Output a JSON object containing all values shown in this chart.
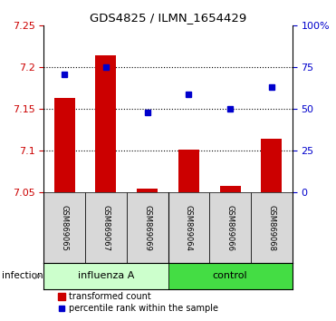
{
  "title": "GDS4825 / ILMN_1654429",
  "samples": [
    "GSM869065",
    "GSM869067",
    "GSM869069",
    "GSM869064",
    "GSM869066",
    "GSM869068"
  ],
  "bar_values": [
    7.163,
    7.215,
    7.055,
    7.102,
    7.058,
    7.115
  ],
  "percentile_values": [
    71,
    75,
    48,
    59,
    50,
    63
  ],
  "ylim_left": [
    7.05,
    7.25
  ],
  "ylim_right": [
    0,
    100
  ],
  "yticks_left": [
    7.05,
    7.1,
    7.15,
    7.2,
    7.25
  ],
  "ytick_labels_left": [
    "7.05",
    "7.1",
    "7.15",
    "7.2",
    "7.25"
  ],
  "yticks_right": [
    0,
    25,
    50,
    75,
    100
  ],
  "ytick_labels_right": [
    "0",
    "25",
    "50",
    "75",
    "100%"
  ],
  "hlines": [
    7.1,
    7.15,
    7.2
  ],
  "bar_color": "#cc0000",
  "dot_color": "#0000cc",
  "bar_bottom": 7.05,
  "influenza_color": "#ccffcc",
  "control_color": "#44dd44",
  "group_label": "infection",
  "legend_bar_label": "transformed count",
  "legend_dot_label": "percentile rank within the sample",
  "x_positions": [
    0,
    1,
    2,
    3,
    4,
    5
  ]
}
